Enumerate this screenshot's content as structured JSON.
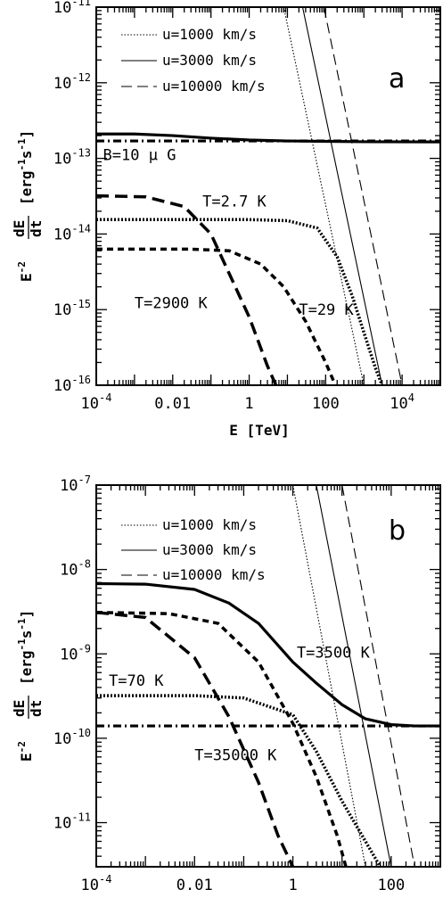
{
  "colors": {
    "ink": "#000000",
    "background": "#ffffff"
  },
  "chart_data": [
    {
      "type": "line",
      "panel_label": "a",
      "xlabel": "E [TeV]",
      "ylabel_main": "E",
      "ylabel_sup": "-2",
      "ylabel_frac_num": "dE",
      "ylabel_frac_den": "dt",
      "ylabel_units": "[erg",
      "ylabel_units_sup1": "-1",
      "ylabel_units_mid": "s",
      "ylabel_units_sup2": "-1",
      "ylabel_units_end": "]",
      "x_scale": "log",
      "y_scale": "log",
      "xlim": [
        0.0001,
        100000
      ],
      "ylim": [
        1e-16,
        1e-11
      ],
      "x_ticks": [
        {
          "value": 0.0001,
          "base": "10",
          "exp": "-4",
          "plain": ""
        },
        {
          "value": 0.01,
          "base": "",
          "exp": "",
          "plain": "0.01"
        },
        {
          "value": 1,
          "base": "",
          "exp": "",
          "plain": "1"
        },
        {
          "value": 100,
          "base": "",
          "exp": "",
          "plain": "100"
        },
        {
          "value": 10000,
          "base": "10",
          "exp": "4",
          "plain": ""
        }
      ],
      "y_ticks": [
        {
          "value": 1e-16,
          "base": "10",
          "exp": "-16"
        },
        {
          "value": 1e-15,
          "base": "10",
          "exp": "-15"
        },
        {
          "value": 1e-14,
          "base": "10",
          "exp": "-14"
        },
        {
          "value": 1e-13,
          "base": "10",
          "exp": "-13"
        },
        {
          "value": 1e-12,
          "base": "10",
          "exp": "-12"
        },
        {
          "value": 1e-11,
          "base": "10",
          "exp": "-11"
        }
      ],
      "legend": [
        {
          "label": "u=1000 km/s",
          "style": "dotted"
        },
        {
          "label": "u=3000 km/s",
          "style": "solid"
        },
        {
          "label": "u=10000 km/s",
          "style": "dashed"
        }
      ],
      "annotations": [
        {
          "text": "B=10 μ G",
          "x": 0.00015,
          "y": 9.5e-14
        },
        {
          "text": "T=2.7 K",
          "x": 0.06,
          "y": 2.3e-14
        },
        {
          "text": "T=2900 K",
          "x": 0.001,
          "y": 1.05e-15
        },
        {
          "text": "T=29 K",
          "x": 20,
          "y": 8.5e-16
        }
      ],
      "series": [
        {
          "style": "thick-solid",
          "x": [
            0.0001,
            0.001,
            0.01,
            0.1,
            1,
            10,
            100,
            1000,
            100000
          ],
          "y": [
            2.1e-13,
            2.1e-13,
            2e-13,
            1.85e-13,
            1.75e-13,
            1.7e-13,
            1.68e-13,
            1.66e-13,
            1.65e-13
          ]
        },
        {
          "style": "thick-dashdot",
          "x": [
            0.0001,
            0.01,
            1,
            100,
            100000
          ],
          "y": [
            1.7e-13,
            1.7e-13,
            1.7e-13,
            1.7e-13,
            1.7e-13
          ]
        },
        {
          "style": "thick-dotted",
          "x": [
            0.0001,
            1,
            10,
            60,
            200,
            500,
            1000,
            2000,
            3000
          ],
          "y": [
            1.55e-14,
            1.55e-14,
            1.5e-14,
            1.2e-14,
            5e-15,
            1.5e-15,
            5e-16,
            1.7e-16,
            1e-16
          ]
        },
        {
          "style": "thick-longdash",
          "x": [
            0.0001,
            0.002,
            0.02,
            0.1,
            0.3,
            1,
            3,
            5
          ],
          "y": [
            3.2e-14,
            3.1e-14,
            2.3e-14,
            1e-14,
            3e-15,
            8e-16,
            1.8e-16,
            1e-16
          ]
        },
        {
          "style": "thick-shortdash",
          "x": [
            0.0001,
            0.03,
            0.3,
            2,
            8,
            30,
            100,
            180
          ],
          "y": [
            6.3e-15,
            6.3e-15,
            6e-15,
            4e-15,
            2e-15,
            7e-16,
            2e-16,
            1e-16
          ]
        },
        {
          "style": "thin-dotted",
          "x": [
            8,
            1000
          ],
          "y": [
            1e-11,
            1e-16
          ]
        },
        {
          "style": "thin-solid",
          "x": [
            25,
            3000
          ],
          "y": [
            1e-11,
            1e-16
          ]
        },
        {
          "style": "thin-dashed",
          "x": [
            90,
            10000
          ],
          "y": [
            1e-11,
            1e-16
          ]
        }
      ]
    },
    {
      "type": "line",
      "panel_label": "b",
      "xlabel": "E [TeV]",
      "ylabel_main": "E",
      "ylabel_sup": "-2",
      "ylabel_frac_num": "dE",
      "ylabel_frac_den": "dt",
      "ylabel_units": "[erg",
      "ylabel_units_sup1": "-1",
      "ylabel_units_mid": "s",
      "ylabel_units_sup2": "-1",
      "ylabel_units_end": "]",
      "x_scale": "log",
      "y_scale": "log",
      "xlim": [
        0.0001,
        1000
      ],
      "ylim": [
        3e-12,
        1e-07
      ],
      "x_ticks": [
        {
          "value": 0.0001,
          "base": "10",
          "exp": "-4",
          "plain": ""
        },
        {
          "value": 0.01,
          "base": "",
          "exp": "",
          "plain": "0.01"
        },
        {
          "value": 1,
          "base": "",
          "exp": "",
          "plain": "1"
        },
        {
          "value": 100,
          "base": "",
          "exp": "",
          "plain": "100"
        }
      ],
      "y_ticks": [
        {
          "value": 1e-11,
          "base": "10",
          "exp": "-11"
        },
        {
          "value": 1e-10,
          "base": "10",
          "exp": "-10"
        },
        {
          "value": 1e-09,
          "base": "10",
          "exp": "-9"
        },
        {
          "value": 1e-08,
          "base": "10",
          "exp": "-8"
        },
        {
          "value": 1e-07,
          "base": "10",
          "exp": "-7"
        }
      ],
      "legend": [
        {
          "label": "u=1000 km/s",
          "style": "dotted"
        },
        {
          "label": "u=3000 km/s",
          "style": "solid"
        },
        {
          "label": "u=10000 km/s",
          "style": "dashed"
        }
      ],
      "annotations": [
        {
          "text": "T=3500 K",
          "x": 1.2,
          "y": 9e-10
        },
        {
          "text": "T=70 K",
          "x": 0.00018,
          "y": 4.2e-10
        },
        {
          "text": "T=35000 K",
          "x": 0.01,
          "y": 5.5e-11
        }
      ],
      "series": [
        {
          "style": "thick-solid",
          "x": [
            0.0001,
            0.001,
            0.01,
            0.05,
            0.2,
            1,
            3,
            10,
            30,
            100,
            300,
            1000
          ],
          "y": [
            6.8e-09,
            6.7e-09,
            5.8e-09,
            4e-09,
            2.3e-09,
            8e-10,
            4.5e-10,
            2.5e-10,
            1.7e-10,
            1.45e-10,
            1.4e-10,
            1.4e-10
          ]
        },
        {
          "style": "thick-dashdot",
          "x": [
            0.0001,
            0.01,
            1,
            100,
            1000
          ],
          "y": [
            1.4e-10,
            1.4e-10,
            1.4e-10,
            1.4e-10,
            1.4e-10
          ]
        },
        {
          "style": "thick-dotted",
          "x": [
            0.0001,
            0.01,
            0.1,
            1,
            3,
            10,
            30,
            60
          ],
          "y": [
            3.2e-10,
            3.2e-10,
            3e-10,
            1.9e-10,
            7e-11,
            1.8e-11,
            6e-12,
            3e-12
          ]
        },
        {
          "style": "thick-shortdash",
          "x": [
            0.0001,
            0.003,
            0.03,
            0.2,
            1,
            3,
            8,
            12
          ],
          "y": [
            3.1e-09,
            3e-09,
            2.3e-09,
            8e-10,
            1.5e-10,
            3.5e-11,
            7e-12,
            3e-12
          ]
        },
        {
          "style": "thick-longdash",
          "x": [
            0.0001,
            0.001,
            0.01,
            0.05,
            0.2,
            0.5,
            1
          ],
          "y": [
            3.1e-09,
            2.7e-09,
            9e-10,
            1.8e-10,
            3e-11,
            7e-12,
            3e-12
          ]
        },
        {
          "style": "thin-dotted",
          "x": [
            1,
            30
          ],
          "y": [
            1e-07,
            3e-12
          ]
        },
        {
          "style": "thin-solid",
          "x": [
            3,
            100
          ],
          "y": [
            1e-07,
            3e-12
          ]
        },
        {
          "style": "thin-dashed",
          "x": [
            10,
            300
          ],
          "y": [
            1e-07,
            3e-12
          ]
        }
      ]
    }
  ]
}
